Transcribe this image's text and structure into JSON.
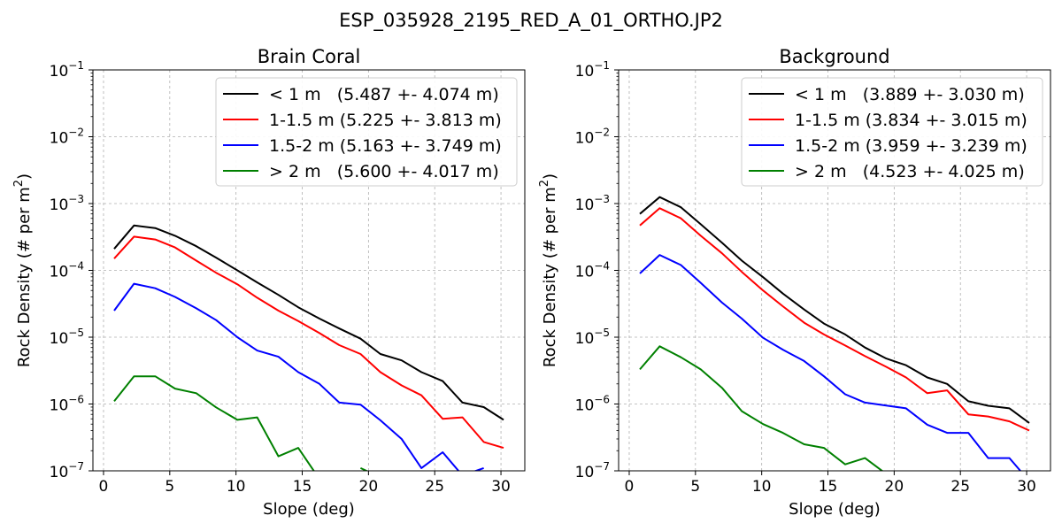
{
  "figure_title": "ESP_035928_2195_RED_A_01_ORTHO.JP2",
  "chart_data": [
    {
      "type": "line",
      "title": "Brain Coral",
      "xlabel": "Slope (deg)",
      "ylabel_base": "Rock Density (# per m",
      "ylabel_sup": "2",
      "ylabel_close": ")",
      "yscale": "log",
      "xlim": [
        -0.8,
        31.8
      ],
      "ylim": [
        1e-07,
        0.1
      ],
      "grid": true,
      "legend_position": "upper right",
      "x_ticks": [
        0,
        5,
        10,
        15,
        20,
        25,
        30
      ],
      "y_ticks": [
        {
          "value": 1e-07,
          "base": "10",
          "exp": "−7"
        },
        {
          "value": 1e-06,
          "base": "10",
          "exp": "−6"
        },
        {
          "value": 1e-05,
          "base": "10",
          "exp": "−5"
        },
        {
          "value": 0.0001,
          "base": "10",
          "exp": "−4"
        },
        {
          "value": 0.001,
          "base": "10",
          "exp": "−3"
        },
        {
          "value": 0.01,
          "base": "10",
          "exp": "−2"
        },
        {
          "value": 0.1,
          "base": "10",
          "exp": "−1"
        }
      ],
      "x": [
        0.8,
        2.3,
        3.9,
        5.4,
        7.0,
        8.5,
        10.1,
        11.6,
        13.2,
        14.7,
        16.3,
        17.8,
        19.4,
        20.9,
        22.5,
        24.0,
        25.6,
        27.1,
        28.7,
        30.2
      ],
      "series": [
        {
          "name": "< 1 m   (5.487 +- 4.074 m)",
          "color": "#000000",
          "values": [
            0.00021,
            0.00047,
            0.00043,
            0.00033,
            0.00023,
            0.000155,
            0.0001,
            6.6e-05,
            4.3e-05,
            2.8e-05,
            1.9e-05,
            1.35e-05,
            9.5e-06,
            5.6e-06,
            4.5e-06,
            3e-06,
            2.2e-06,
            1.05e-06,
            9e-07,
            5.8e-07
          ]
        },
        {
          "name": "1-1.5 m (5.225 +- 3.813 m)",
          "color": "#ff0000",
          "values": [
            0.00015,
            0.00032,
            0.00029,
            0.00022,
            0.00014,
            9.2e-05,
            6.2e-05,
            3.9e-05,
            2.5e-05,
            1.75e-05,
            1.15e-05,
            7.6e-06,
            5.6e-06,
            3e-06,
            1.9e-06,
            1.35e-06,
            6e-07,
            6.3e-07,
            2.7e-07,
            2.2e-07
          ]
        },
        {
          "name": "1.5-2 m (5.163 +- 3.749 m)",
          "color": "#0000ff",
          "values": [
            2.5e-05,
            6.3e-05,
            5.4e-05,
            4e-05,
            2.7e-05,
            1.8e-05,
            1e-05,
            6.3e-06,
            5.1e-06,
            3e-06,
            2e-06,
            1.05e-06,
            9.8e-07,
            5.7e-07,
            3e-07,
            1.1e-07,
            1.9e-07,
            8.5e-08,
            1.1e-07,
            null
          ]
        },
        {
          "name": "> 2 m   (5.600 +- 4.017 m)",
          "color": "#008000",
          "values": [
            1.1e-06,
            2.6e-06,
            2.6e-06,
            1.7e-06,
            1.45e-06,
            8.9e-07,
            5.8e-07,
            6.3e-07,
            1.65e-07,
            2.2e-07,
            7.5e-08,
            null,
            1.1e-07,
            8e-08,
            null,
            null,
            null,
            null,
            null,
            null
          ]
        }
      ]
    },
    {
      "type": "line",
      "title": "Background",
      "xlabel": "Slope (deg)",
      "ylabel_base": "Rock Density (# per m",
      "ylabel_sup": "2",
      "ylabel_close": ")",
      "yscale": "log",
      "xlim": [
        -0.8,
        31.8
      ],
      "ylim": [
        1e-07,
        0.1
      ],
      "grid": true,
      "legend_position": "upper right",
      "x_ticks": [
        0,
        5,
        10,
        15,
        20,
        25,
        30
      ],
      "y_ticks": [
        {
          "value": 1e-07,
          "base": "10",
          "exp": "−7"
        },
        {
          "value": 1e-06,
          "base": "10",
          "exp": "−6"
        },
        {
          "value": 1e-05,
          "base": "10",
          "exp": "−5"
        },
        {
          "value": 0.0001,
          "base": "10",
          "exp": "−4"
        },
        {
          "value": 0.001,
          "base": "10",
          "exp": "−3"
        },
        {
          "value": 0.01,
          "base": "10",
          "exp": "−2"
        },
        {
          "value": 0.1,
          "base": "10",
          "exp": "−1"
        }
      ],
      "x": [
        0.8,
        2.3,
        3.9,
        5.4,
        7.0,
        8.5,
        10.1,
        11.6,
        13.2,
        14.7,
        16.3,
        17.8,
        19.4,
        20.9,
        22.5,
        24.0,
        25.6,
        27.1,
        28.7,
        30.2
      ],
      "series": [
        {
          "name": "< 1 m   (3.889 +- 3.030 m)",
          "color": "#000000",
          "values": [
            0.0007,
            0.00125,
            0.00088,
            0.00049,
            0.00026,
            0.00014,
            7.9e-05,
            4.5e-05,
            2.6e-05,
            1.6e-05,
            1.1e-05,
            7e-06,
            4.8e-06,
            3.8e-06,
            2.5e-06,
            2e-06,
            1.1e-06,
            9.4e-07,
            8.6e-07,
            5.2e-07
          ]
        },
        {
          "name": "1-1.5 m (3.834 +- 3.015 m)",
          "color": "#ff0000",
          "values": [
            0.00047,
            0.00085,
            0.0006,
            0.00033,
            0.00018,
            9.5e-05,
            5e-05,
            2.9e-05,
            1.65e-05,
            1.1e-05,
            7.5e-06,
            5.2e-06,
            3.6e-06,
            2.5e-06,
            1.45e-06,
            1.6e-06,
            7e-07,
            6.5e-07,
            5.5e-07,
            4e-07
          ]
        },
        {
          "name": "1.5-2 m (3.959 +- 3.239 m)",
          "color": "#0000ff",
          "values": [
            9e-05,
            0.00017,
            0.00012,
            6.5e-05,
            3.3e-05,
            1.9e-05,
            9.8e-06,
            6.5e-06,
            4.4e-06,
            2.6e-06,
            1.4e-06,
            1.05e-06,
            9.5e-07,
            8.6e-07,
            4.9e-07,
            3.7e-07,
            3.7e-07,
            1.55e-07,
            1.55e-07,
            7e-08
          ]
        },
        {
          "name": "> 2 m   (4.523 +- 4.025 m)",
          "color": "#008000",
          "values": [
            3.3e-06,
            7.3e-06,
            5e-06,
            3.3e-06,
            1.75e-06,
            7.8e-07,
            5e-07,
            3.7e-07,
            2.5e-07,
            2.2e-07,
            1.25e-07,
            1.55e-07,
            9e-08,
            6e-08,
            null,
            null,
            null,
            null,
            null,
            null
          ]
        }
      ]
    }
  ]
}
